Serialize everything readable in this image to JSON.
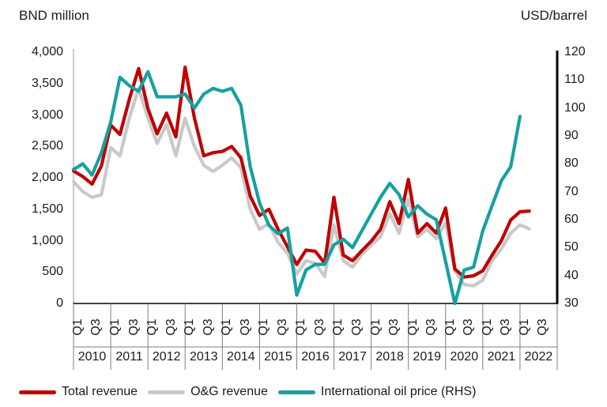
{
  "titles": {
    "left_unit": "BND million",
    "right_unit": "USD/barrel"
  },
  "chart_data": {
    "type": "line",
    "x_years": [
      "2010",
      "2011",
      "2012",
      "2013",
      "2014",
      "2015",
      "2016",
      "2017",
      "2018",
      "2019",
      "2020",
      "2021",
      "2022"
    ],
    "x_quarter_ticks": [
      "Q1",
      "Q3"
    ],
    "quarters_per_year": 4,
    "left_axis": {
      "title": "BND million",
      "min": 0,
      "max": 4000,
      "ticks": [
        {
          "v": 4000,
          "label": "4,000"
        },
        {
          "v": 3500,
          "label": "3,500"
        },
        {
          "v": 3000,
          "label": "3,000"
        },
        {
          "v": 2500,
          "label": "2,500"
        },
        {
          "v": 2000,
          "label": "2,000"
        },
        {
          "v": 1500,
          "label": "1,500"
        },
        {
          "v": 1000,
          "label": "1,000"
        },
        {
          "v": 500,
          "label": "500"
        },
        {
          "v": 0,
          "label": "0"
        }
      ]
    },
    "right_axis": {
      "title": "USD/barrel",
      "min": 30,
      "max": 120,
      "ticks": [
        {
          "v": 120,
          "label": "120"
        },
        {
          "v": 110,
          "label": "110"
        },
        {
          "v": 100,
          "label": "100"
        },
        {
          "v": 90,
          "label": "90"
        },
        {
          "v": 80,
          "label": "80"
        },
        {
          "v": 70,
          "label": "70"
        },
        {
          "v": 60,
          "label": "60"
        },
        {
          "v": 50,
          "label": "50"
        },
        {
          "v": 40,
          "label": "40"
        },
        {
          "v": 30,
          "label": "30"
        }
      ]
    },
    "series": [
      {
        "name": "Total revenue",
        "axis": "left",
        "color": "#c00000",
        "start": "2010 Q1",
        "values": [
          2110,
          2020,
          1900,
          2190,
          2840,
          2690,
          3250,
          3740,
          3100,
          2700,
          3030,
          2650,
          3760,
          2950,
          2350,
          2400,
          2420,
          2500,
          2320,
          1710,
          1400,
          1500,
          1180,
          900,
          620,
          850,
          830,
          640,
          1690,
          770,
          680,
          840,
          990,
          1180,
          1620,
          1270,
          1975,
          1120,
          1270,
          1120,
          1520,
          550,
          420,
          440,
          520,
          770,
          1000,
          1330,
          1460,
          1470
        ]
      },
      {
        "name": "O&G revenue",
        "axis": "left",
        "color": "#c9c9c9",
        "start": "2010 Q1",
        "values": [
          1940,
          1780,
          1690,
          1730,
          2480,
          2350,
          2950,
          3420,
          2950,
          2550,
          2850,
          2350,
          2950,
          2500,
          2200,
          2100,
          2200,
          2320,
          2160,
          1500,
          1180,
          1270,
          970,
          800,
          470,
          680,
          640,
          430,
          1250,
          680,
          580,
          780,
          930,
          1060,
          1430,
          1120,
          1660,
          1060,
          1180,
          1030,
          1280,
          520,
          300,
          280,
          370,
          680,
          870,
          1120,
          1250,
          1190
        ]
      },
      {
        "name": "International oil price (RHS)",
        "axis": "right",
        "color": "#17a0a0",
        "start": "2010 Q1",
        "values": [
          78,
          80,
          76,
          84,
          95,
          111,
          108,
          106,
          113,
          104,
          104,
          104,
          105,
          100,
          105,
          107,
          106,
          107,
          101,
          79,
          66,
          58,
          55,
          57,
          33,
          42,
          44,
          44,
          51,
          53,
          50,
          56,
          62,
          68,
          73,
          69,
          61,
          65,
          62,
          60,
          45,
          30,
          42,
          43,
          56,
          65,
          74,
          79,
          97
        ]
      }
    ],
    "draw_order": [
      1,
      0,
      2
    ],
    "grid": "off",
    "legend_position": "bottom"
  }
}
